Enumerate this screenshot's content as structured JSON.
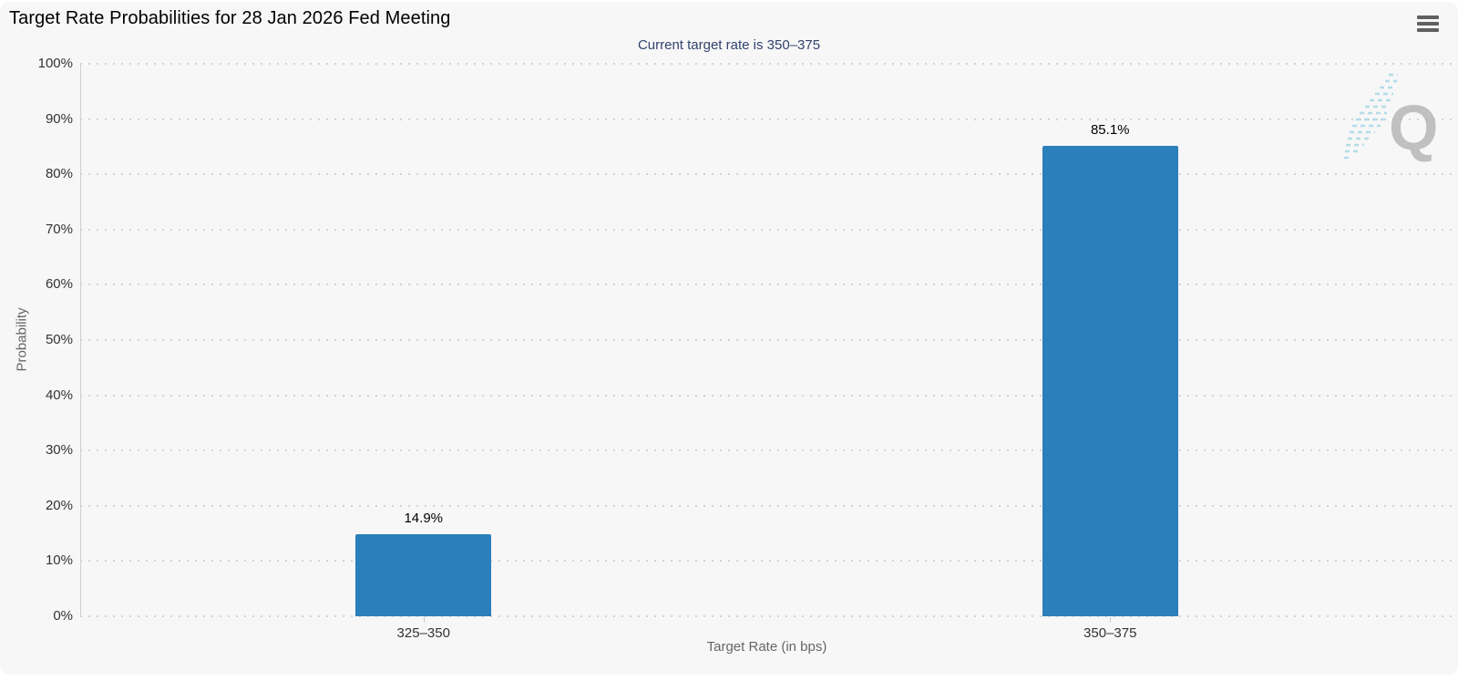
{
  "chart_data": {
    "type": "bar",
    "title": "Target Rate Probabilities for 28 Jan 2026 Fed Meeting",
    "subtitle": "Current target rate is 350–375",
    "categories": [
      "325–350",
      "350–375"
    ],
    "values": [
      14.9,
      85.1
    ],
    "value_labels": [
      "14.9%",
      "85.1%"
    ],
    "xlabel": "Target Rate (in bps)",
    "ylabel": "Probability",
    "ylim": [
      0,
      100
    ],
    "ytick_step": 10,
    "ytick_labels": [
      "0%",
      "10%",
      "20%",
      "30%",
      "40%",
      "50%",
      "60%",
      "70%",
      "80%",
      "90%",
      "100%"
    ],
    "grid": "dotted-horizontal",
    "legend": "none"
  },
  "icons": {
    "context_menu": "hamburger-icon"
  },
  "watermark": {
    "letter": "Q",
    "letter_color": "#b3b3b3",
    "streak_color": "#a9d7e8"
  },
  "colors": {
    "page_bg": "#ffffff",
    "panel_bg": "#f7f7f7",
    "bar": "#2b7fba",
    "title_text": "#000000",
    "subtitle_text": "#32436e",
    "axis_label_text": "#333333",
    "axis_title_text": "#666666",
    "gridline": "#d3d3d3"
  }
}
